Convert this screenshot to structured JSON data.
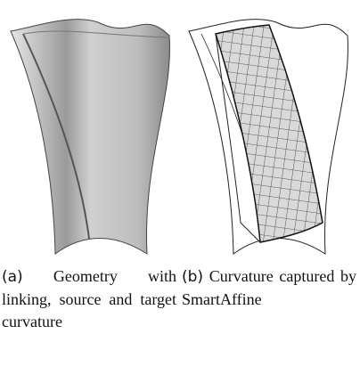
{
  "figure": {
    "subfigures": [
      {
        "label": "(a)",
        "caption": "Geometry with linking, source and target curvature"
      },
      {
        "label": "(b)",
        "caption": "Curvature captured by SmartAffine"
      }
    ]
  }
}
